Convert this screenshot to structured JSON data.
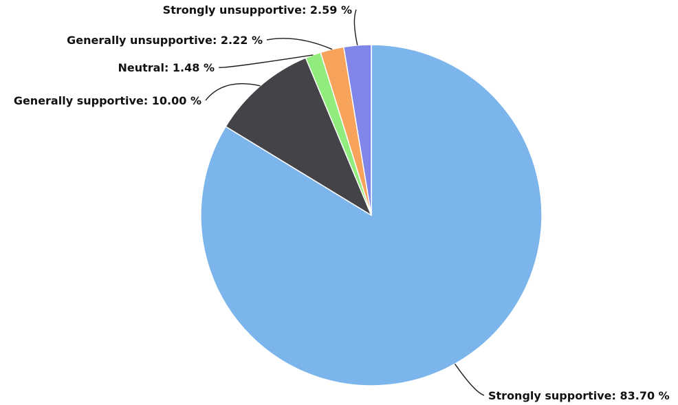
{
  "chart_data": {
    "type": "pie",
    "title": "",
    "start_angle_deg": 0,
    "direction": "clockwise",
    "label_format": "{label}: {value} %",
    "slices": [
      {
        "label": "Strongly supportive",
        "value": 83.7,
        "display": "83.70",
        "color": "#7cb5ec"
      },
      {
        "label": "Generally supportive",
        "value": 10.0,
        "display": "10.00",
        "color": "#434348"
      },
      {
        "label": "Neutral",
        "value": 1.48,
        "display": "1.48",
        "color": "#90ed7d"
      },
      {
        "label": "Generally unsupportive",
        "value": 2.22,
        "display": "2.22",
        "color": "#f7a35c"
      },
      {
        "label": "Strongly unsupportive",
        "value": 2.59,
        "display": "2.59",
        "color": "#8085e9"
      }
    ]
  }
}
